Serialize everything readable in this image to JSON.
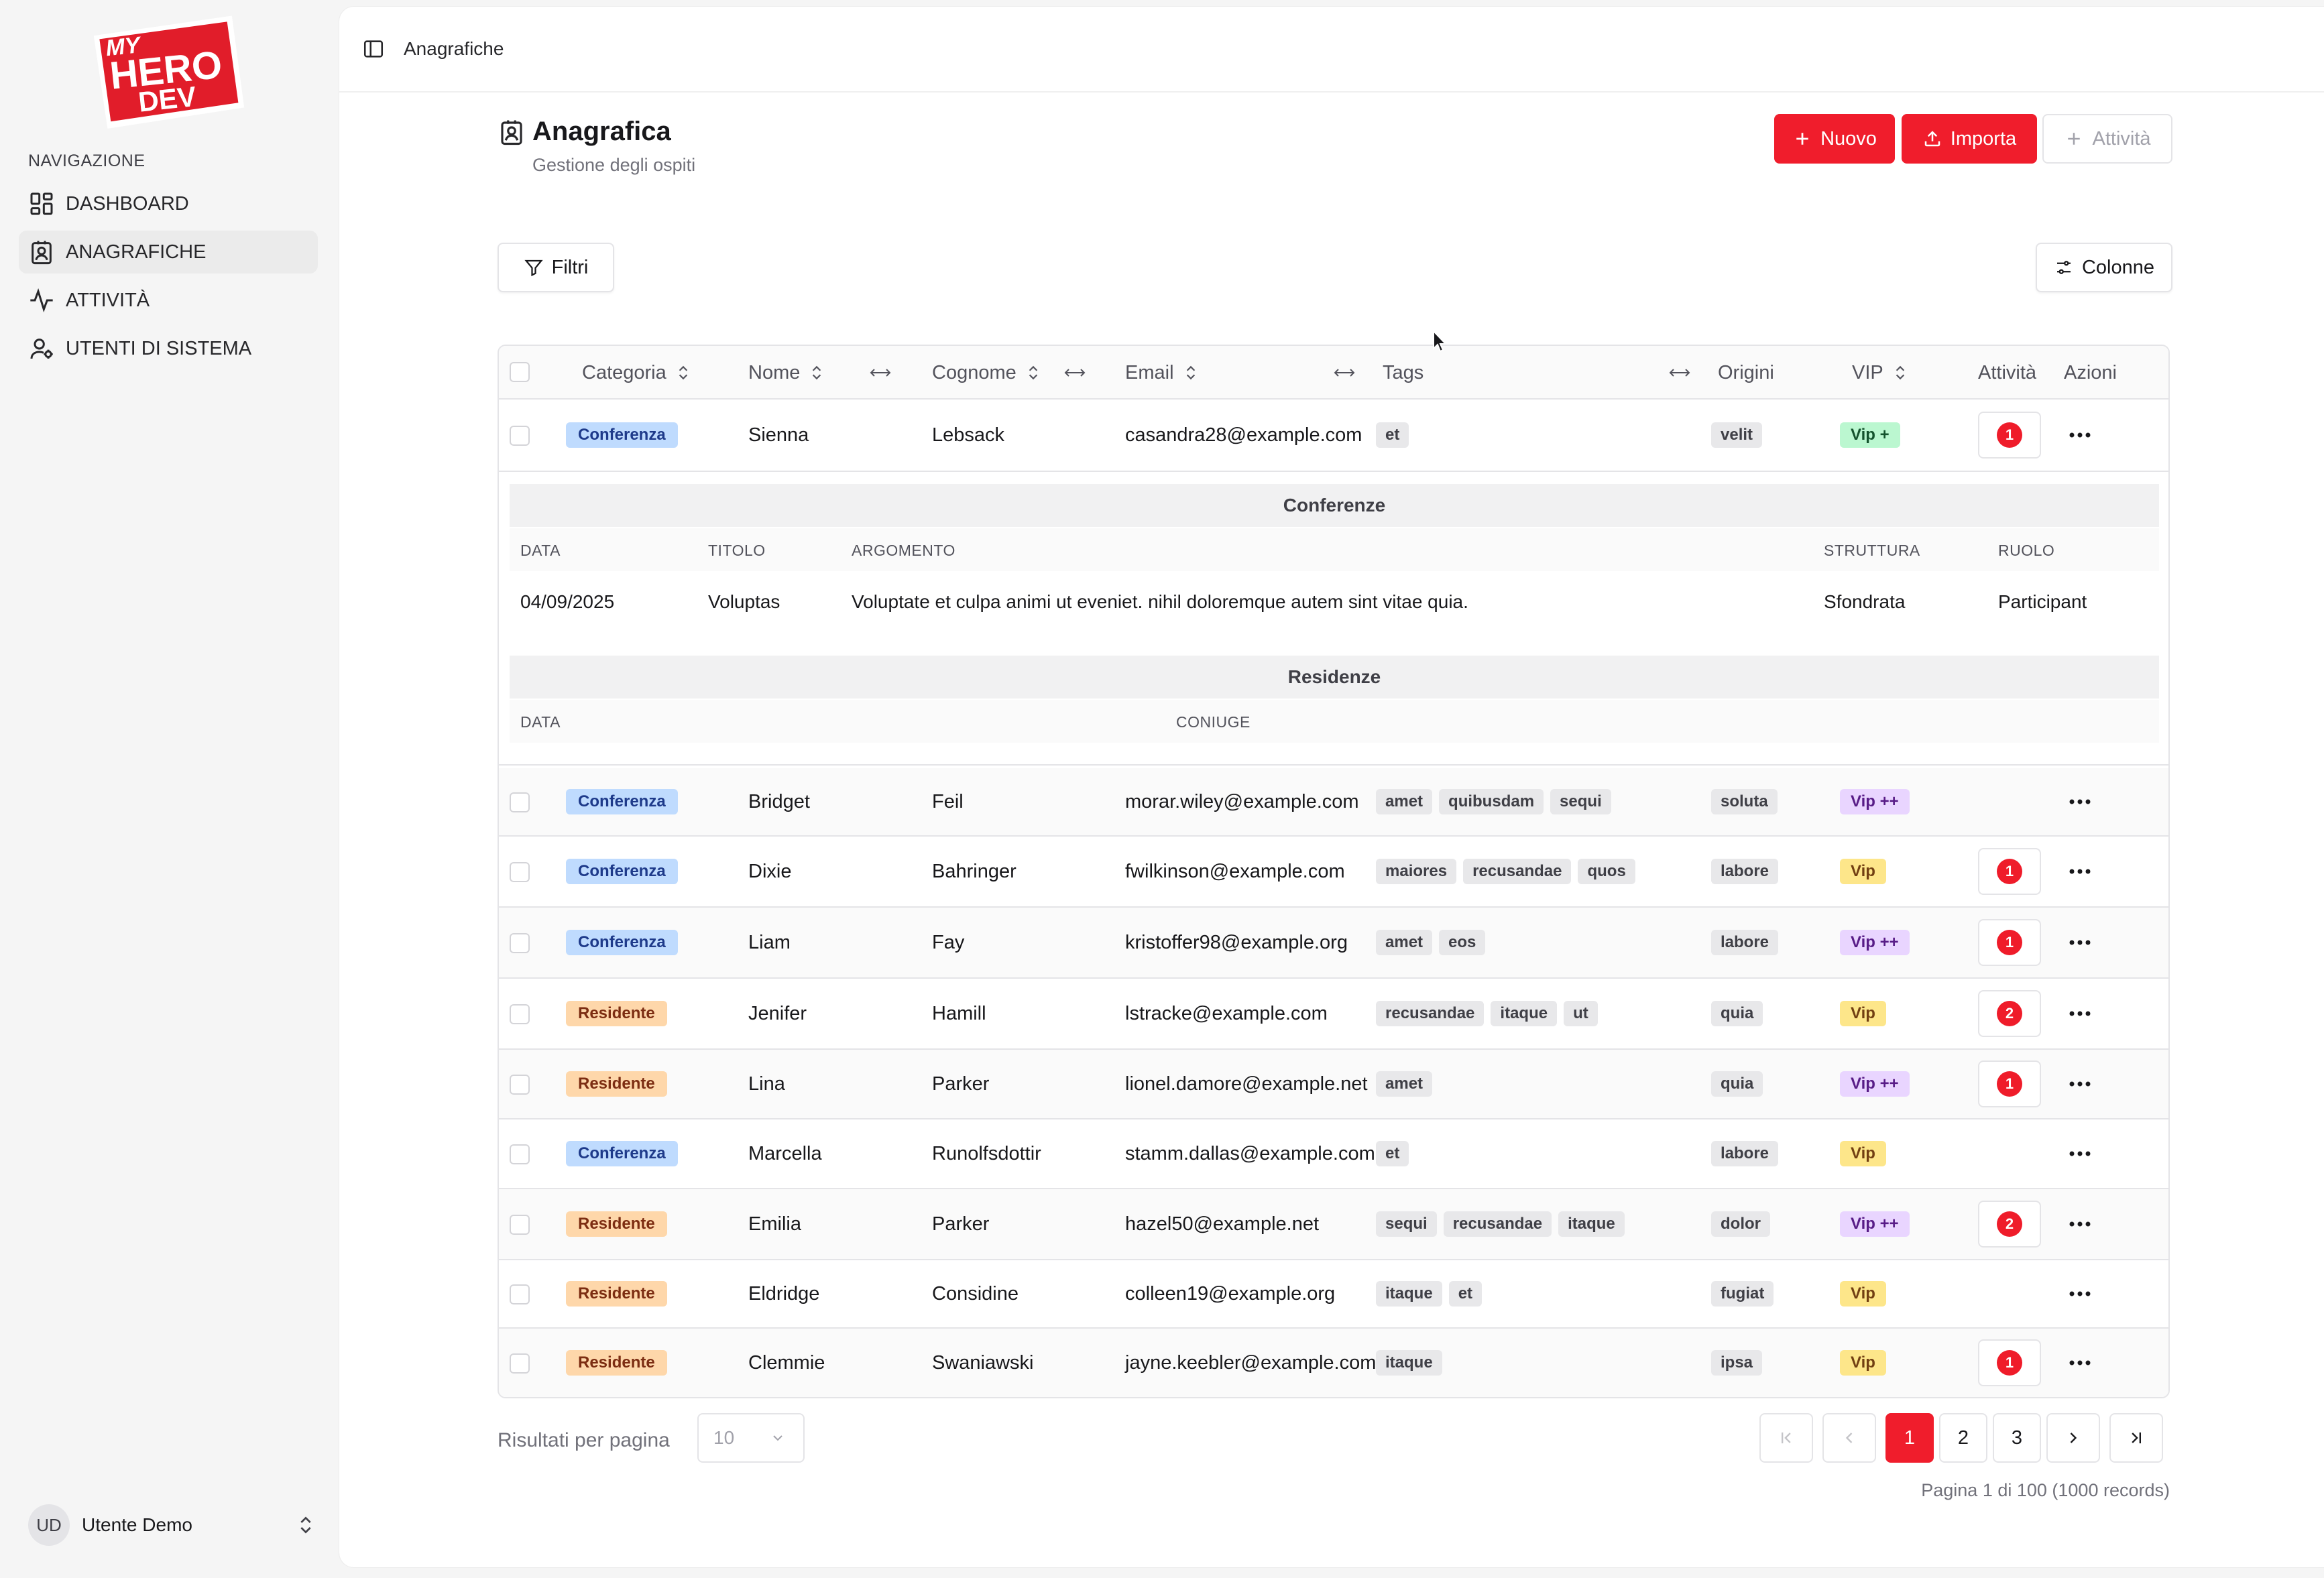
{
  "sidebar": {
    "logo_text": [
      "MY",
      "HERO",
      "DEV"
    ],
    "section_heading": "NAVIGAZIONE",
    "items": [
      {
        "label": "DASHBOARD",
        "icon": "grid-icon"
      },
      {
        "label": "ANAGRAFICHE",
        "icon": "contact-card-icon",
        "active": true
      },
      {
        "label": "ATTIVITÀ",
        "icon": "activity-icon"
      },
      {
        "label": "UTENTI DI SISTEMA",
        "icon": "user-gear-icon"
      }
    ],
    "user": {
      "initials": "UD",
      "name": "Utente Demo"
    }
  },
  "topbar": {
    "breadcrumb": "Anagrafiche"
  },
  "page": {
    "title": "Anagrafica",
    "subtitle": "Gestione degli ospiti"
  },
  "actions": {
    "new_label": "Nuovo",
    "import_label": "Importa",
    "activity_label": "Attività"
  },
  "toolbar": {
    "filters_label": "Filtri",
    "columns_label": "Colonne"
  },
  "table": {
    "headers": {
      "category": "Categoria",
      "name": "Nome",
      "surname": "Cognome",
      "email": "Email",
      "tags": "Tags",
      "origins": "Origini",
      "vip": "VIP",
      "activity": "Attività",
      "actions": "Azioni"
    },
    "rows": [
      {
        "category": "Conferenza",
        "name": "Sienna",
        "surname": "Lebsack",
        "email": "casandra28@example.com",
        "tags": [
          "et"
        ],
        "origin": "velit",
        "vip": "Vip +",
        "activity": "1"
      },
      {
        "category": "Conferenza",
        "name": "Bridget",
        "surname": "Feil",
        "email": "morar.wiley@example.com",
        "tags": [
          "amet",
          "quibusdam",
          "sequi"
        ],
        "origin": "soluta",
        "vip": "Vip ++",
        "activity": ""
      },
      {
        "category": "Conferenza",
        "name": "Dixie",
        "surname": "Bahringer",
        "email": "fwilkinson@example.com",
        "tags": [
          "maiores",
          "recusandae",
          "quos"
        ],
        "origin": "labore",
        "vip": "Vip",
        "activity": "1"
      },
      {
        "category": "Conferenza",
        "name": "Liam",
        "surname": "Fay",
        "email": "kristoffer98@example.org",
        "tags": [
          "amet",
          "eos"
        ],
        "origin": "labore",
        "vip": "Vip ++",
        "activity": "1"
      },
      {
        "category": "Residente",
        "name": "Jenifer",
        "surname": "Hamill",
        "email": "lstracke@example.com",
        "tags": [
          "recusandae",
          "itaque",
          "ut"
        ],
        "origin": "quia",
        "vip": "Vip",
        "activity": "2"
      },
      {
        "category": "Residente",
        "name": "Lina",
        "surname": "Parker",
        "email": "lionel.damore@example.net",
        "tags": [
          "amet"
        ],
        "origin": "quia",
        "vip": "Vip ++",
        "activity": "1"
      },
      {
        "category": "Conferenza",
        "name": "Marcella",
        "surname": "Runolfsdottir",
        "email": "stamm.dallas@example.com",
        "tags": [
          "et"
        ],
        "origin": "labore",
        "vip": "Vip",
        "activity": ""
      },
      {
        "category": "Residente",
        "name": "Emilia",
        "surname": "Parker",
        "email": "hazel50@example.net",
        "tags": [
          "sequi",
          "recusandae",
          "itaque"
        ],
        "origin": "dolor",
        "vip": "Vip ++",
        "activity": "2"
      },
      {
        "category": "Residente",
        "name": "Eldridge",
        "surname": "Considine",
        "email": "colleen19@example.org",
        "tags": [
          "itaque",
          "et"
        ],
        "origin": "fugiat",
        "vip": "Vip",
        "activity": ""
      },
      {
        "category": "Residente",
        "name": "Clemmie",
        "surname": "Swaniawski",
        "email": "jayne.keebler@example.com",
        "tags": [
          "itaque"
        ],
        "origin": "ipsa",
        "vip": "Vip",
        "activity": "1"
      }
    ],
    "expanded": {
      "conferences": {
        "title": "Conferenze",
        "headers": [
          "DATA",
          "TITOLO",
          "ARGOMENTO",
          "STRUTTURA",
          "RUOLO"
        ],
        "row": [
          "04/09/2025",
          "Voluptas",
          "Voluptate et culpa animi ut eveniet. nihil doloremque autem sint vitae quia.",
          "Sfondrata",
          "Participant"
        ]
      },
      "residences": {
        "title": "Residenze",
        "headers": [
          "DATA",
          "CONIUGE"
        ]
      }
    }
  },
  "pagination": {
    "per_page_label": "Risultati per pagina",
    "per_page_value": "10",
    "pages": [
      "1",
      "2",
      "3"
    ],
    "current_page": "1",
    "info": "Pagina 1 di 100 (1000 records)"
  },
  "colors": {
    "brand_red": "#f01d2c",
    "conference_badge": "#bfdbfe",
    "resident_badge": "#fed7aa"
  }
}
